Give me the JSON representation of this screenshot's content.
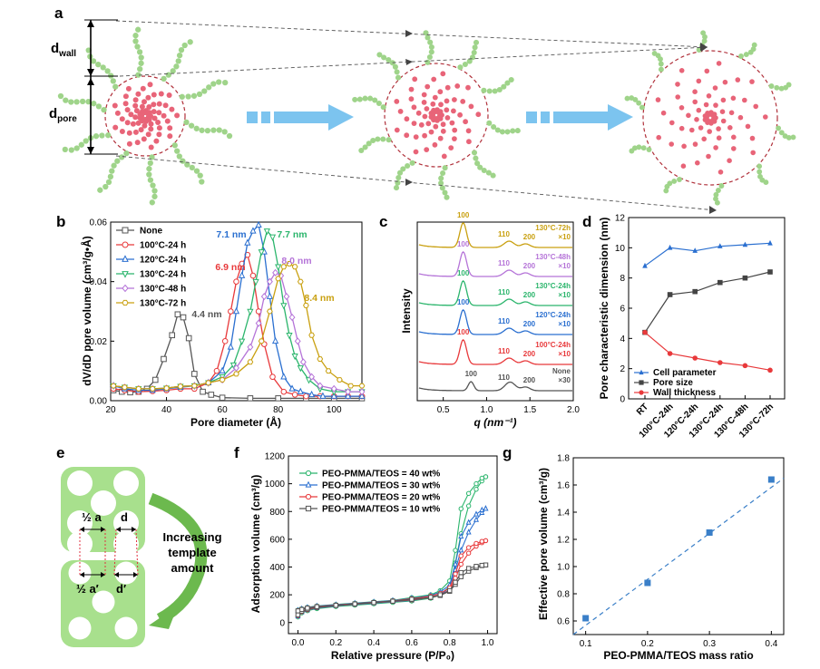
{
  "panels": {
    "a": "a",
    "b": "b",
    "c": "c",
    "d": "d",
    "e": "e",
    "f": "f",
    "g": "g"
  },
  "panel_a": {
    "d_wall": "d",
    "d_wall_sub": "wall",
    "d_pore": "d",
    "d_pore_sub": "pore"
  },
  "panel_e": {
    "half_a": "½ a",
    "d": "d",
    "half_a_prime": "½ a′",
    "d_prime": "d′",
    "caption_lines": [
      "Increasing",
      "template",
      "amount"
    ]
  },
  "colors": {
    "pink": "#e86478",
    "green": "#9fd48a",
    "arrow": "#7cc4ef",
    "e_green": "#a8e08d"
  },
  "chart_data": [
    {
      "panel": "b",
      "type": "line",
      "xlabel": "Pore diameter (Å)",
      "ylabel": "dV/dD pore volume (cm³/g•Å)",
      "xlim": [
        20,
        110
      ],
      "ylim": [
        0,
        0.06
      ],
      "xticks": [
        "20",
        "40",
        "60",
        "80",
        "100"
      ],
      "yticks": [
        "0.00",
        "0.02",
        "0.04",
        "0.06"
      ],
      "series": [
        {
          "name": "None",
          "color": "#555555",
          "marker": "square",
          "peak_label": "4.4 nm",
          "x": [
            21,
            24,
            27,
            30,
            33,
            36,
            39,
            42,
            44,
            46,
            48,
            50,
            53,
            56,
            60,
            70,
            80,
            90,
            100,
            110
          ],
          "y": [
            0.0035,
            0.003,
            0.0028,
            0.003,
            0.004,
            0.007,
            0.014,
            0.022,
            0.029,
            0.028,
            0.021,
            0.009,
            0.003,
            0.002,
            0.001,
            0.0008,
            0.0008,
            0.0008,
            0.0008,
            0.0008
          ]
        },
        {
          "name": "100°C-24 h",
          "color": "#e8393b",
          "marker": "circle",
          "peak_label": "6.9 nm",
          "x": [
            21,
            25,
            30,
            35,
            40,
            45,
            50,
            55,
            58,
            61,
            63,
            65,
            67,
            69,
            71,
            73,
            75,
            78,
            82,
            86,
            90,
            95,
            100,
            105,
            110
          ],
          "y": [
            0.004,
            0.0035,
            0.003,
            0.0032,
            0.0035,
            0.004,
            0.004,
            0.006,
            0.01,
            0.02,
            0.03,
            0.04,
            0.046,
            0.049,
            0.042,
            0.03,
            0.019,
            0.008,
            0.003,
            0.002,
            0.0015,
            0.0015,
            0.0015,
            0.0015,
            0.0015
          ]
        },
        {
          "name": "120°C-24 h",
          "color": "#2a6fd0",
          "marker": "triangle",
          "peak_label": "7.1 nm",
          "x": [
            21,
            25,
            30,
            35,
            40,
            45,
            50,
            55,
            60,
            63,
            65,
            67,
            69,
            71,
            73,
            75,
            77,
            79,
            82,
            85,
            88,
            92,
            96,
            100,
            105,
            110
          ],
          "y": [
            0.005,
            0.004,
            0.0035,
            0.0035,
            0.004,
            0.0045,
            0.005,
            0.006,
            0.01,
            0.018,
            0.03,
            0.042,
            0.053,
            0.057,
            0.059,
            0.05,
            0.035,
            0.02,
            0.008,
            0.004,
            0.003,
            0.002,
            0.0015,
            0.0015,
            0.0015,
            0.0015
          ]
        },
        {
          "name": "130°C-24 h",
          "color": "#2bb56c",
          "marker": "triangle-down",
          "peak_label": "7.7 nm",
          "x": [
            21,
            25,
            30,
            35,
            40,
            45,
            50,
            55,
            60,
            64,
            67,
            70,
            72,
            74,
            76,
            78,
            80,
            82,
            84,
            86,
            88,
            91,
            95,
            100,
            105,
            110
          ],
          "y": [
            0.005,
            0.0045,
            0.004,
            0.004,
            0.0042,
            0.0048,
            0.005,
            0.006,
            0.008,
            0.012,
            0.02,
            0.03,
            0.04,
            0.05,
            0.057,
            0.055,
            0.045,
            0.032,
            0.022,
            0.015,
            0.011,
            0.007,
            0.004,
            0.003,
            0.003,
            0.003
          ]
        },
        {
          "name": "130°C-48 h",
          "color": "#b574d8",
          "marker": "diamond",
          "peak_label": "8.0 nm",
          "x": [
            21,
            25,
            30,
            35,
            40,
            45,
            50,
            55,
            60,
            65,
            70,
            73,
            75,
            77,
            79,
            81,
            83,
            85,
            87,
            89,
            92,
            95,
            100,
            105,
            110
          ],
          "y": [
            0.005,
            0.0045,
            0.004,
            0.004,
            0.0042,
            0.0048,
            0.005,
            0.006,
            0.007,
            0.011,
            0.018,
            0.026,
            0.035,
            0.04,
            0.043,
            0.042,
            0.035,
            0.028,
            0.02,
            0.013,
            0.008,
            0.005,
            0.004,
            0.003,
            0.003
          ]
        },
        {
          "name": "130°C-72 h",
          "color": "#c9a010",
          "marker": "hexagon",
          "peak_label": "8.4 nm",
          "x": [
            21,
            25,
            30,
            35,
            40,
            45,
            50,
            55,
            60,
            65,
            70,
            74,
            77,
            80,
            82,
            84,
            86,
            88,
            90,
            92,
            95,
            98,
            102,
            106,
            110
          ],
          "y": [
            0.005,
            0.0045,
            0.004,
            0.004,
            0.0042,
            0.0048,
            0.005,
            0.006,
            0.007,
            0.009,
            0.013,
            0.02,
            0.03,
            0.041,
            0.045,
            0.046,
            0.045,
            0.04,
            0.032,
            0.022,
            0.014,
            0.01,
            0.007,
            0.005,
            0.005
          ]
        }
      ]
    },
    {
      "panel": "c",
      "type": "line",
      "xlabel": "q (nm⁻¹)",
      "ylabel": "Intensity",
      "xlim": [
        0.2,
        2.0
      ],
      "xticks": [
        "0.5",
        "1.0",
        "1.5",
        "2.0"
      ],
      "series": [
        {
          "name": "None",
          "color": "#555555",
          "label": "None",
          "factor": "×30",
          "peak_labels": [
            "100",
            "110",
            "200"
          ]
        },
        {
          "name": "100°C-24h",
          "color": "#e8393b",
          "label": "100°C-24h",
          "factor": "×10",
          "peak_labels": [
            "100",
            "110",
            "200"
          ]
        },
        {
          "name": "120°C-24h",
          "color": "#2a6fd0",
          "label": "120°C-24h",
          "factor": "×10",
          "peak_labels": [
            "100",
            "110",
            "200"
          ]
        },
        {
          "name": "130°C-24h",
          "color": "#2bb56c",
          "label": "130°C-24h",
          "factor": "×10",
          "peak_labels": [
            "100",
            "110",
            "200"
          ]
        },
        {
          "name": "130°C-48h",
          "color": "#b574d8",
          "label": "130°C-48h",
          "factor": "×10",
          "peak_labels": [
            "100",
            "110",
            "200"
          ]
        },
        {
          "name": "130°C-72h",
          "color": "#c9a010",
          "label": "130°C-72h",
          "factor": "×10",
          "peak_labels": [
            "100",
            "110",
            "200"
          ]
        }
      ]
    },
    {
      "panel": "d",
      "type": "line",
      "ylabel": "Pore characteristic dimension (nm)",
      "categories": [
        "RT",
        "100°C-24h",
        "120°C-24h",
        "130°C-24h",
        "130°C-48h",
        "130°C-72h"
      ],
      "ylim": [
        0,
        12
      ],
      "yticks": [
        "0",
        "2",
        "4",
        "6",
        "8",
        "10",
        "12"
      ],
      "series": [
        {
          "name": "Cell parameter",
          "color": "#2a6fd0",
          "marker": "triangle",
          "values": [
            8.8,
            10.0,
            9.8,
            10.1,
            10.2,
            10.3
          ]
        },
        {
          "name": "Pore size",
          "color": "#444444",
          "marker": "square",
          "values": [
            4.4,
            6.9,
            7.1,
            7.7,
            8.0,
            8.4
          ]
        },
        {
          "name": "Wall thickness",
          "color": "#e8393b",
          "marker": "circle",
          "values": [
            4.4,
            3.0,
            2.7,
            2.4,
            2.2,
            1.9
          ]
        }
      ]
    },
    {
      "panel": "f",
      "type": "line",
      "xlabel": "Relative pressure (P/P₀)",
      "ylabel": "Adsorption volume (cm³/g)",
      "xlim": [
        -0.05,
        1.05
      ],
      "ylim": [
        -80,
        1200
      ],
      "xticks": [
        "0.0",
        "0.2",
        "0.4",
        "0.6",
        "0.8",
        "1.0"
      ],
      "yticks": [
        "0",
        "200",
        "400",
        "600",
        "800",
        "1000",
        "1200"
      ],
      "series": [
        {
          "name": "PEO-PMMA/TEOS = 40 wt%",
          "color": "#2bb56c",
          "marker": "circle",
          "x": [
            0,
            0.02,
            0.05,
            0.1,
            0.2,
            0.3,
            0.4,
            0.5,
            0.6,
            0.7,
            0.75,
            0.8,
            0.83,
            0.86,
            0.9,
            0.94,
            0.97,
            0.99
          ],
          "ads": [
            40,
            70,
            85,
            100,
            115,
            125,
            135,
            145,
            155,
            175,
            200,
            260,
            430,
            640,
            840,
            960,
            1020,
            1050
          ],
          "des": [
            1050,
            1040,
            1000,
            930,
            820,
            520,
            300,
            230,
            200,
            180,
            160,
            150,
            140,
            130,
            120,
            110,
            100,
            90
          ]
        },
        {
          "name": "PEO-PMMA/TEOS = 30 wt%",
          "color": "#2a6fd0",
          "marker": "triangle",
          "x": [
            0,
            0.02,
            0.05,
            0.1,
            0.2,
            0.3,
            0.4,
            0.5,
            0.6,
            0.7,
            0.75,
            0.8,
            0.83,
            0.86,
            0.9,
            0.94,
            0.97,
            0.99
          ],
          "ads": [
            45,
            75,
            90,
            105,
            120,
            130,
            140,
            150,
            160,
            180,
            200,
            250,
            380,
            520,
            650,
            740,
            790,
            820
          ],
          "des": [
            820,
            810,
            780,
            720,
            620,
            420,
            270,
            220,
            195,
            175,
            158,
            148,
            138,
            128,
            118,
            108,
            98,
            88
          ]
        },
        {
          "name": "PEO-PMMA/TEOS = 20 wt%",
          "color": "#e8393b",
          "marker": "circle",
          "x": [
            0,
            0.02,
            0.05,
            0.1,
            0.2,
            0.3,
            0.4,
            0.5,
            0.6,
            0.7,
            0.75,
            0.8,
            0.83,
            0.86,
            0.9,
            0.94,
            0.97,
            0.99
          ],
          "ads": [
            50,
            78,
            92,
            108,
            122,
            132,
            142,
            152,
            162,
            180,
            198,
            235,
            320,
            420,
            500,
            550,
            575,
            590
          ],
          "des": [
            590,
            585,
            570,
            540,
            480,
            350,
            250,
            210,
            190,
            172,
            156,
            146,
            136,
            126,
            116,
            106,
            96,
            86
          ]
        },
        {
          "name": "PEO-PMMA/TEOS = 10 wt%",
          "color": "#555555",
          "marker": "square",
          "x": [
            0,
            0.02,
            0.05,
            0.1,
            0.2,
            0.3,
            0.4,
            0.5,
            0.6,
            0.7,
            0.75,
            0.8,
            0.83,
            0.86,
            0.9,
            0.94,
            0.97,
            0.99
          ],
          "ads": [
            55,
            82,
            96,
            110,
            124,
            134,
            144,
            154,
            164,
            180,
            195,
            225,
            275,
            330,
            370,
            395,
            410,
            415
          ],
          "des": [
            415,
            412,
            405,
            390,
            360,
            290,
            230,
            200,
            182,
            168,
            154,
            144,
            134,
            124,
            114,
            104,
            94,
            84
          ]
        }
      ]
    },
    {
      "panel": "g",
      "type": "scatter",
      "xlabel": "PEO-PMMA/TEOS mass ratio",
      "ylabel": "Effective pore volume (cm³/g)",
      "xlim": [
        0.08,
        0.42
      ],
      "ylim": [
        0.5,
        1.8
      ],
      "xticks": [
        "0.1",
        "0.2",
        "0.3",
        "0.4"
      ],
      "yticks": [
        "0.6",
        "0.8",
        "1.0",
        "1.2",
        "1.4",
        "1.6",
        "1.8"
      ],
      "x": [
        0.1,
        0.2,
        0.3,
        0.4
      ],
      "values": [
        0.62,
        0.88,
        1.25,
        1.64
      ],
      "fit": {
        "x": [
          0.08,
          0.42
        ],
        "y": [
          0.5,
          1.65
        ]
      },
      "color": "#3a7fc8"
    }
  ]
}
